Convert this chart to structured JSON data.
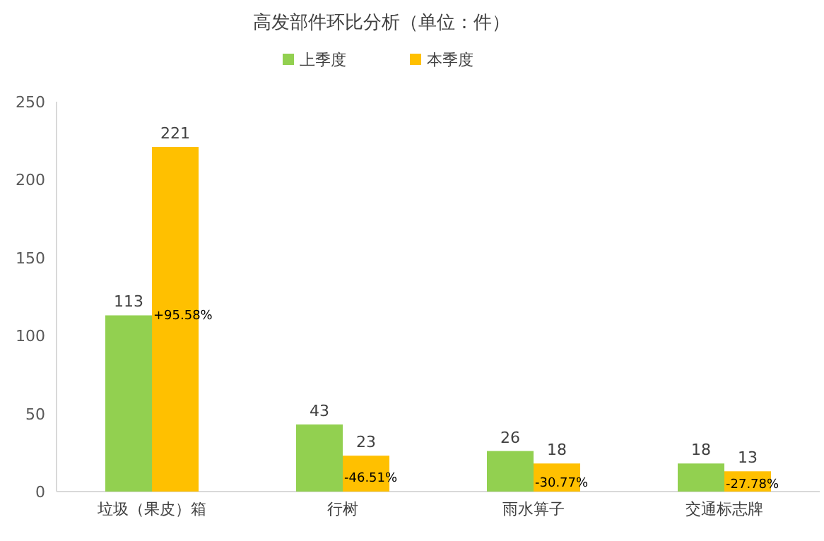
{
  "chart_data": {
    "type": "bar",
    "title": "高发部件环比分析（单位：件）",
    "categories": [
      "垃圾（果皮）箱",
      "行树",
      "雨水箅子",
      "交通标志牌"
    ],
    "series": [
      {
        "name": "上季度",
        "color": "#92d050",
        "values": [
          113,
          43,
          26,
          18
        ]
      },
      {
        "name": "本季度",
        "color": "#ffc000",
        "values": [
          221,
          23,
          18,
          13
        ]
      }
    ],
    "ylim": [
      0,
      250
    ],
    "yticks": [
      0,
      50,
      100,
      150,
      200,
      250
    ],
    "grid": false,
    "legend": "top",
    "data_labels": true,
    "annotations": [
      {
        "text": "+95.58%",
        "x": "垃圾（果皮）箱",
        "y": 113
      },
      {
        "text": "-46.51%",
        "x": "行树",
        "y": 9
      },
      {
        "text": "-30.77%",
        "x": "雨水箅子",
        "y": 6
      },
      {
        "text": "-27.78%",
        "x": "交通标志牌",
        "y": 5
      }
    ]
  }
}
